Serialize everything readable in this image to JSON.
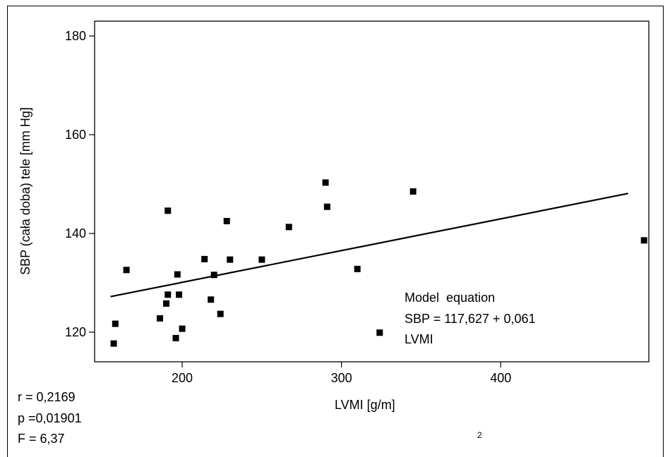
{
  "chart_data": {
    "type": "scatter",
    "title": "",
    "xlabel": "LVMI [g/m]",
    "xlabel_superscript": "2",
    "ylabel": "SBP (cała doba) tele [mm Hg]",
    "xlim": [
      145,
      493
    ],
    "ylim": [
      114,
      183
    ],
    "x_ticks": [
      200,
      300,
      400
    ],
    "y_ticks": [
      120,
      140,
      160,
      180
    ],
    "grid": false,
    "points": [
      {
        "x": 157,
        "y": 117.7
      },
      {
        "x": 158,
        "y": 121.7
      },
      {
        "x": 165,
        "y": 132.6
      },
      {
        "x": 186,
        "y": 122.8
      },
      {
        "x": 190,
        "y": 125.8
      },
      {
        "x": 191,
        "y": 127.6
      },
      {
        "x": 191,
        "y": 144.6
      },
      {
        "x": 196,
        "y": 118.8
      },
      {
        "x": 197,
        "y": 131.7
      },
      {
        "x": 198,
        "y": 127.6
      },
      {
        "x": 200,
        "y": 120.7
      },
      {
        "x": 214,
        "y": 134.8
      },
      {
        "x": 218,
        "y": 126.6
      },
      {
        "x": 220,
        "y": 131.6
      },
      {
        "x": 224,
        "y": 123.7
      },
      {
        "x": 228,
        "y": 142.5
      },
      {
        "x": 230,
        "y": 134.7
      },
      {
        "x": 250,
        "y": 134.7
      },
      {
        "x": 267,
        "y": 141.3
      },
      {
        "x": 290,
        "y": 150.3
      },
      {
        "x": 291,
        "y": 145.4
      },
      {
        "x": 310,
        "y": 132.8
      },
      {
        "x": 324,
        "y": 119.9
      },
      {
        "x": 345,
        "y": 148.5
      },
      {
        "x": 490,
        "y": 138.6
      }
    ],
    "regression": {
      "x0": 155,
      "y0": 127.2,
      "x1": 480,
      "y1": 148.1
    },
    "annotation": [
      "Model  equation",
      "SBP = 117,627 + 0,061",
      "LVMI"
    ],
    "stats": [
      "r = 0,2169",
      "p =0,01901",
      "F = 6,37"
    ]
  }
}
